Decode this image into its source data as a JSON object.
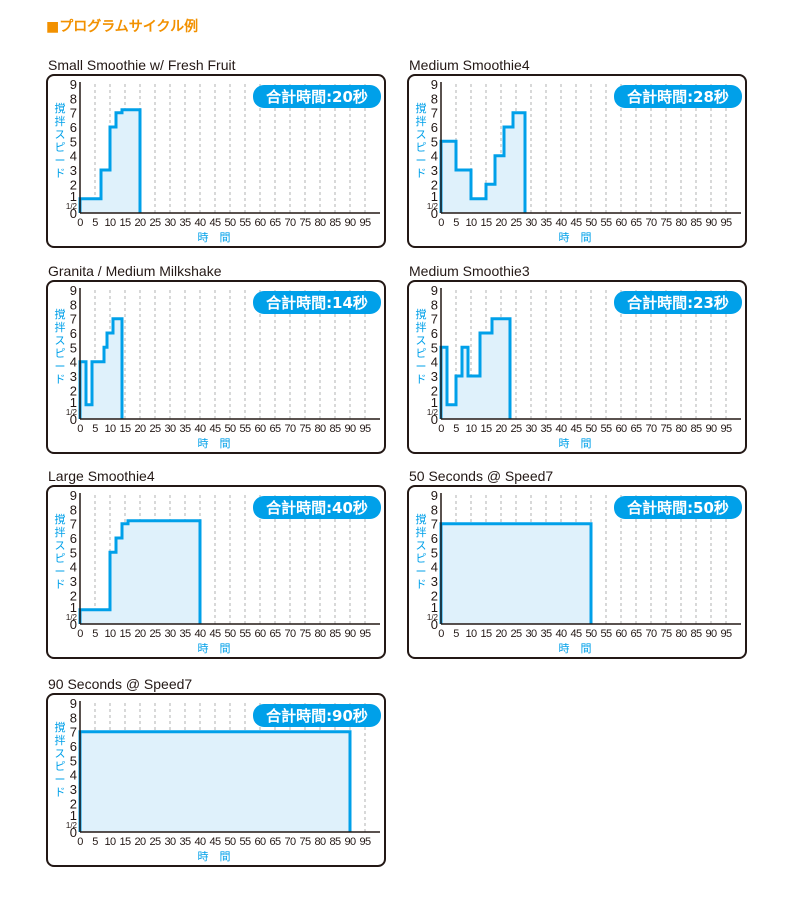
{
  "page": {
    "heading": "■プログラムサイクル例"
  },
  "axis": {
    "x_label": "時　間",
    "y_label_chars": [
      "撹",
      "拌",
      "ス",
      "ピ",
      "ー",
      "ド"
    ],
    "y_ticks": [
      "0",
      "1/2",
      "1",
      "2",
      "3",
      "4",
      "5",
      "6",
      "7",
      "8",
      "9"
    ],
    "x_ticks": [
      0,
      5,
      10,
      15,
      20,
      25,
      30,
      35,
      40,
      45,
      50,
      55,
      60,
      65,
      70,
      75,
      80,
      85,
      90,
      95
    ],
    "xlim": [
      0,
      100
    ],
    "ylim": [
      0,
      9
    ],
    "grid": true
  },
  "colors": {
    "line": "#00a0e9",
    "fill": "#dff1fb",
    "badge_bg": "#00a0e9",
    "badge_text": "#ffffff",
    "grid": "#9fa0a0",
    "border": "#231815",
    "heading": "#f29100"
  },
  "chart_data": [
    {
      "type": "line",
      "title": "Small Smoothie w/ Fresh Fruit",
      "badge": "合計時間:20秒",
      "total_seconds": 20,
      "series": [
        {
          "x": [
            0,
            0,
            7,
            7,
            10,
            10,
            12,
            12,
            14,
            14,
            20,
            20
          ],
          "y": [
            0,
            1,
            1,
            3,
            3,
            6,
            6,
            7,
            7,
            7.2,
            7.2,
            0
          ]
        }
      ]
    },
    {
      "type": "line",
      "title": "Medium Smoothie4",
      "badge": "合計時間:28秒",
      "total_seconds": 28,
      "series": [
        {
          "x": [
            0,
            0,
            5,
            5,
            10,
            10,
            15,
            15,
            18,
            18,
            21,
            21,
            24,
            24,
            28,
            28
          ],
          "y": [
            0,
            5,
            5,
            3,
            3,
            1,
            1,
            2,
            2,
            4,
            4,
            6,
            6,
            7,
            7,
            0
          ]
        }
      ]
    },
    {
      "type": "line",
      "title": "Granita / Medium Milkshake",
      "badge": "合計時間:14秒",
      "total_seconds": 14,
      "series": [
        {
          "x": [
            0,
            0,
            2,
            2,
            4,
            4,
            8,
            8,
            9,
            9,
            11,
            11,
            14,
            14
          ],
          "y": [
            0,
            4,
            4,
            1,
            1,
            4,
            4,
            5,
            5,
            6,
            6,
            7,
            7,
            0
          ]
        }
      ]
    },
    {
      "type": "line",
      "title": "Medium Smoothie3",
      "badge": "合計時間:23秒",
      "total_seconds": 23,
      "series": [
        {
          "x": [
            0,
            0,
            2,
            2,
            5,
            5,
            7,
            7,
            9,
            9,
            13,
            13,
            17,
            17,
            23,
            23
          ],
          "y": [
            0,
            5,
            5,
            1,
            1,
            3,
            3,
            5,
            5,
            3,
            3,
            6,
            6,
            7,
            7,
            0
          ]
        }
      ]
    },
    {
      "type": "line",
      "title": "Large Smoothie4",
      "badge": "合計時間:40秒",
      "total_seconds": 40,
      "series": [
        {
          "x": [
            0,
            0,
            10,
            10,
            12,
            12,
            14,
            14,
            16,
            16,
            40,
            40
          ],
          "y": [
            0,
            1,
            1,
            5,
            5,
            6,
            6,
            7,
            7,
            7.2,
            7.2,
            0
          ]
        }
      ]
    },
    {
      "type": "line",
      "title": "50 Seconds @ Speed7",
      "badge": "合計時間:50秒",
      "total_seconds": 50,
      "series": [
        {
          "x": [
            0,
            0,
            50,
            50
          ],
          "y": [
            0,
            7,
            7,
            0
          ]
        }
      ]
    },
    {
      "type": "line",
      "title": "90 Seconds @ Speed7",
      "badge": "合計時間:90秒",
      "total_seconds": 90,
      "series": [
        {
          "x": [
            0,
            0,
            90,
            90
          ],
          "y": [
            0,
            7,
            7,
            0
          ]
        }
      ]
    }
  ]
}
